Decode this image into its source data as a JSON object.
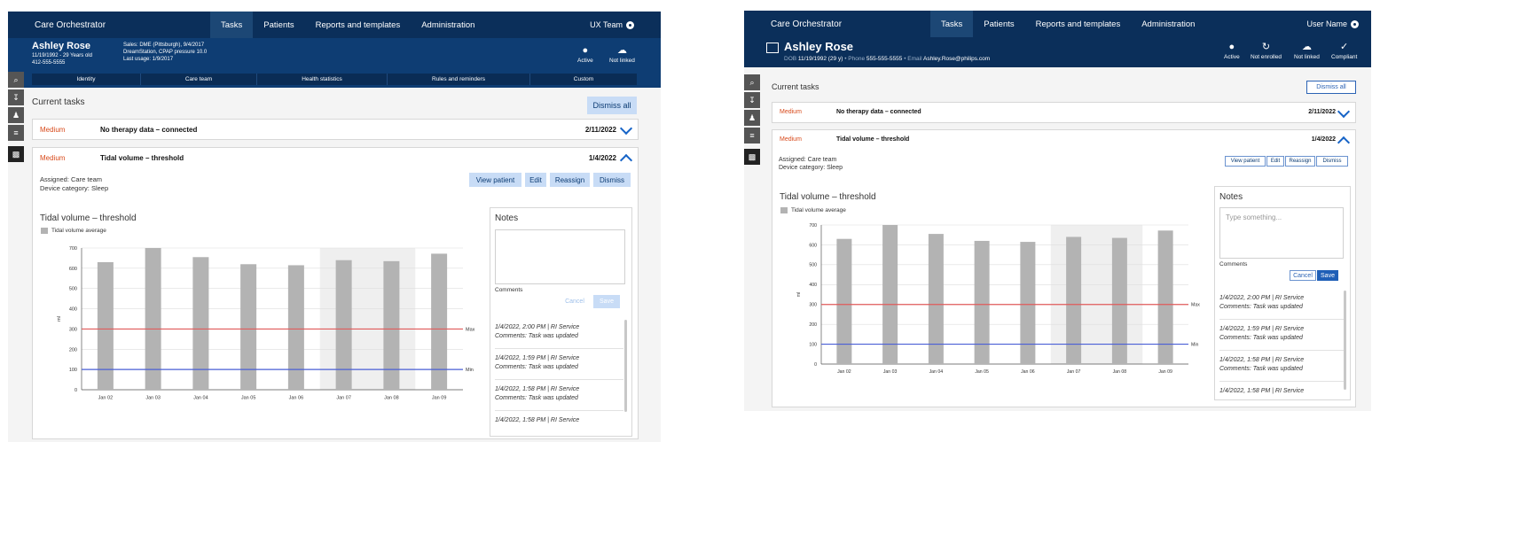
{
  "app_title": "Care Orchestrator",
  "nav": [
    "Tasks",
    "Patients",
    "Reports and templates",
    "Administration"
  ],
  "left": {
    "user": "UX Team",
    "patient": {
      "name": "Ashley Rose",
      "line1": "11/19/1992 - 29 Years old",
      "line2": "412-555-5555",
      "info1": "Sales: DME (Pittsburgh), 9/4/2017",
      "info2": "DreamStation, CPAP pressure 10.0",
      "info3": "Last usage: 1/9/2017"
    },
    "status": [
      "Active",
      "Not linked"
    ],
    "subtabs": [
      "Identity",
      "Care team",
      "Health statistics",
      "Rules and reminders",
      "Custom"
    ]
  },
  "right": {
    "user": "User Name",
    "patient": {
      "name": "Ashley Rose",
      "dob_label": "DOB",
      "dob": "11/19/1992 (29 y)",
      "phone_label": "Phone",
      "phone": "555-555-5555",
      "email_label": "Email",
      "email": "Ashley.Rose@philips.com"
    },
    "status": [
      "Active",
      "Not enrolled",
      "Not linked",
      "Compliant"
    ]
  },
  "current_tasks": "Current tasks",
  "dismiss_all": "Dismiss all",
  "tasks": [
    {
      "priority": "Medium",
      "title": "No therapy data – connected",
      "date": "2/11/2022"
    },
    {
      "priority": "Medium",
      "title": "Tidal volume – threshold",
      "date": "1/4/2022"
    }
  ],
  "assigned": "Assigned: Care team",
  "device": "Device category: Sleep",
  "actions": [
    "View patient",
    "Edit",
    "Reassign",
    "Dismiss"
  ],
  "notes": {
    "title": "Notes",
    "placeholder": "Type something...",
    "comments_label": "Comments",
    "cancel": "Cancel",
    "save": "Save",
    "entries": [
      {
        "meta": "1/4/2022, 2:00 PM | RI Service",
        "text": "Comments: Task was updated"
      },
      {
        "meta": "1/4/2022, 1:59 PM | RI Service",
        "text": "Comments: Task was updated"
      },
      {
        "meta": "1/4/2022, 1:58 PM | RI Service",
        "text": "Comments: Task was updated"
      },
      {
        "meta": "1/4/2022, 1:58 PM | RI Service",
        "text": ""
      }
    ]
  },
  "chart_data": {
    "type": "bar",
    "title": "Tidal volume – threshold",
    "categories": [
      "Jan 02",
      "Jan 03",
      "Jan 04",
      "Jan 05",
      "Jan 06",
      "Jan 07",
      "Jan 08",
      "Jan 09"
    ],
    "series": [
      {
        "name": "Tidal volume average",
        "values": [
          630,
          700,
          655,
          620,
          615,
          640,
          635,
          672
        ]
      }
    ],
    "ylabel": "ml",
    "ylim": [
      0,
      700
    ],
    "yticks": [
      0,
      100,
      200,
      300,
      400,
      500,
      600,
      700
    ],
    "thresholds": [
      {
        "label": "Max",
        "value": 300,
        "color": "#e05a5a"
      },
      {
        "label": "Min",
        "value": 100,
        "color": "#4a5fd6"
      }
    ],
    "highlight_categories": [
      "Jan 07",
      "Jan 08"
    ],
    "bar_color": "#b3b3b3",
    "grid": true
  }
}
